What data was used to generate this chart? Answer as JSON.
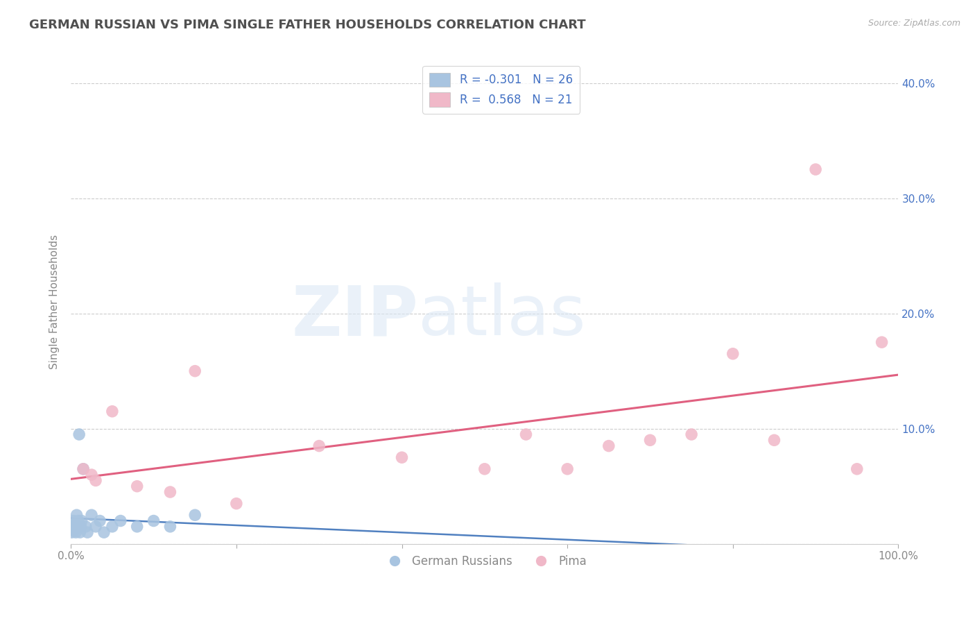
{
  "title": "GERMAN RUSSIAN VS PIMA SINGLE FATHER HOUSEHOLDS CORRELATION CHART",
  "source": "Source: ZipAtlas.com",
  "ylabel": "Single Father Households",
  "xlim": [
    0,
    100
  ],
  "ylim": [
    0,
    42
  ],
  "yticks": [
    0,
    10,
    20,
    30,
    40
  ],
  "yticklabels_right": [
    "",
    "10.0%",
    "20.0%",
    "30.0%",
    "40.0%"
  ],
  "color_blue": "#a8c4e0",
  "color_pink": "#f0b8c8",
  "color_blue_line": "#5080c0",
  "color_pink_line": "#e06080",
  "color_blue_text": "#4472c4",
  "background_color": "#ffffff",
  "title_color": "#505050",
  "grid_color": "#cccccc",
  "legend_label1": "German Russians",
  "legend_label2": "Pima",
  "german_russian_x": [
    0.1,
    0.2,
    0.3,
    0.4,
    0.5,
    0.6,
    0.7,
    0.8,
    0.9,
    1.0,
    1.1,
    1.2,
    1.3,
    1.5,
    1.8,
    2.0,
    2.5,
    3.0,
    3.5,
    4.0,
    5.0,
    6.0,
    8.0,
    10.0,
    12.0,
    15.0
  ],
  "german_russian_y": [
    1.0,
    1.5,
    2.0,
    1.2,
    1.8,
    1.0,
    2.5,
    1.5,
    2.0,
    9.5,
    1.0,
    1.5,
    2.0,
    6.5,
    1.5,
    1.0,
    2.5,
    1.5,
    2.0,
    1.0,
    1.5,
    2.0,
    1.5,
    2.0,
    1.5,
    2.5
  ],
  "pima_x": [
    1.5,
    2.5,
    3.0,
    5.0,
    8.0,
    12.0,
    15.0,
    20.0,
    30.0,
    40.0,
    50.0,
    55.0,
    60.0,
    65.0,
    70.0,
    75.0,
    80.0,
    85.0,
    90.0,
    95.0,
    98.0
  ],
  "pima_y": [
    6.5,
    6.0,
    5.5,
    11.5,
    5.0,
    4.5,
    15.0,
    3.5,
    8.5,
    7.5,
    6.5,
    9.5,
    6.5,
    8.5,
    9.0,
    9.5,
    16.5,
    9.0,
    32.5,
    6.5,
    17.5
  ]
}
